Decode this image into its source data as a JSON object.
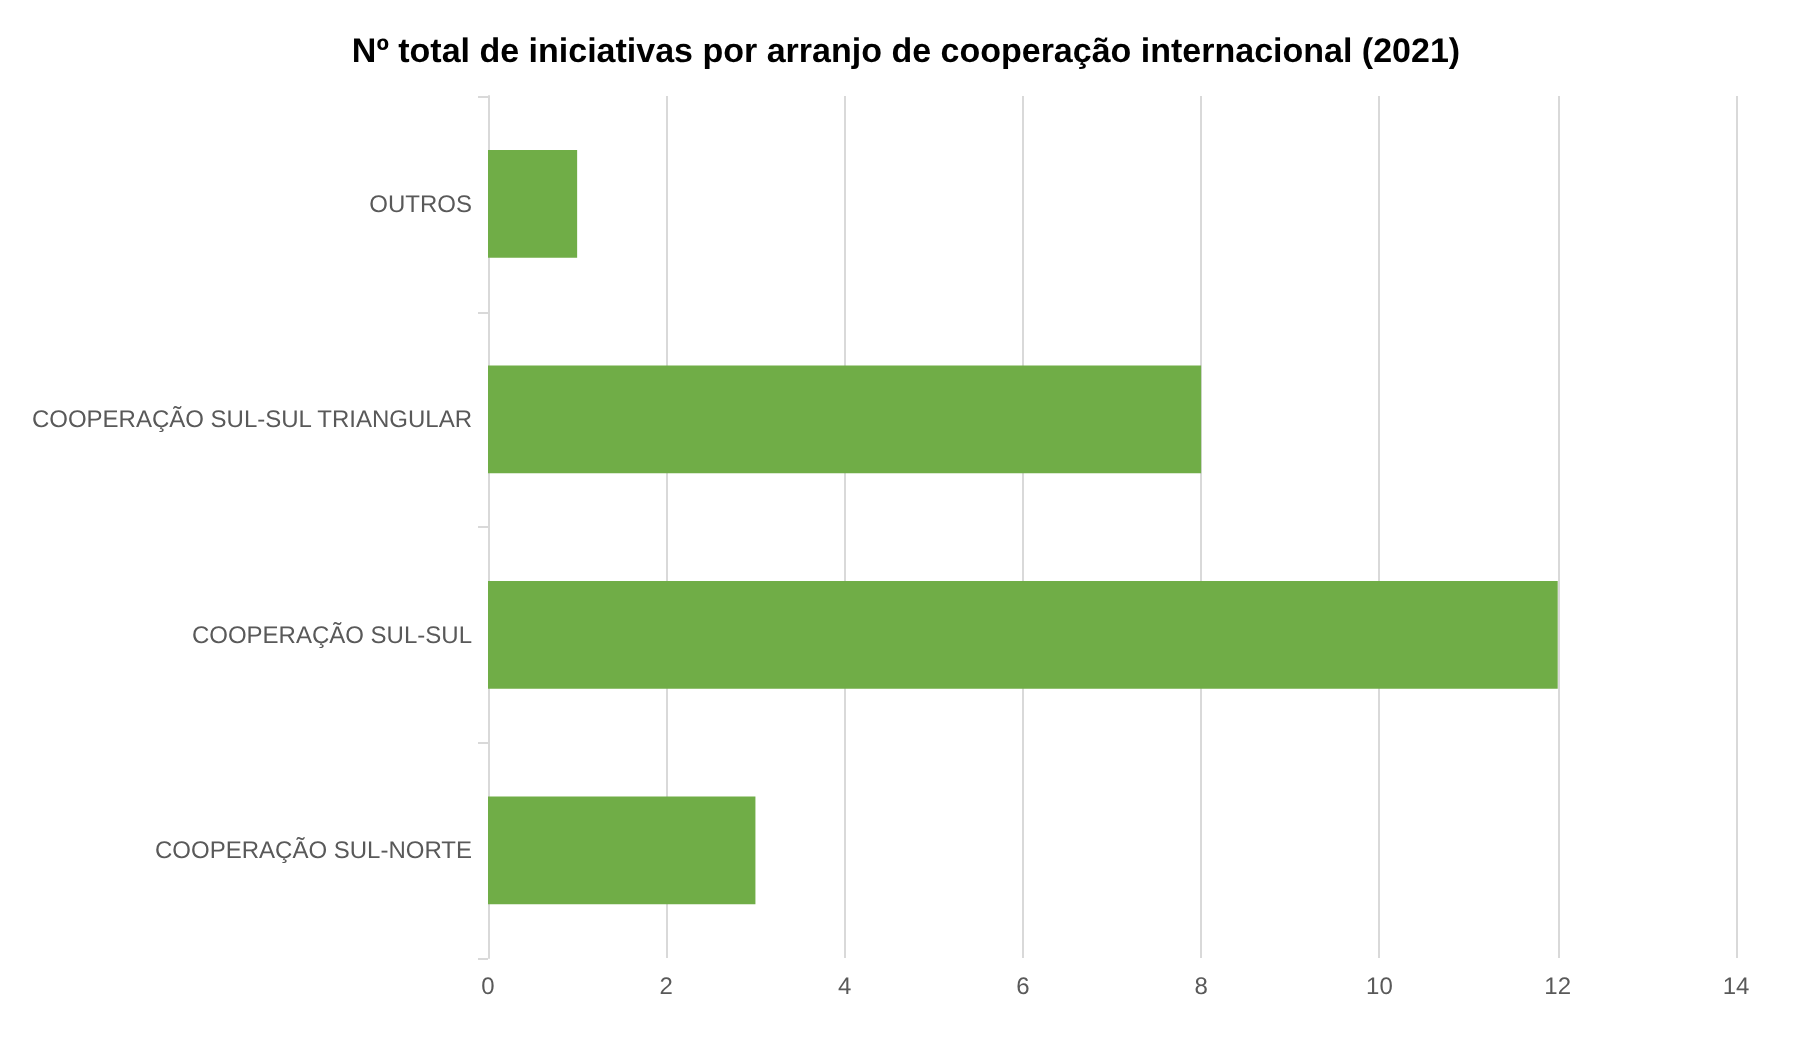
{
  "chart_data": {
    "type": "bar",
    "orientation": "horizontal",
    "title": "Nº total de iniciativas por arranjo de cooperação internacional (2021)",
    "categories": [
      "OUTROS",
      "COOPERAÇÃO SUL-SUL TRIANGULAR",
      "COOPERAÇÃO SUL-SUL",
      "COOPERAÇÃO SUL-NORTE"
    ],
    "values": [
      1,
      8,
      12,
      3
    ],
    "color": "#70ad47",
    "xlim": [
      0,
      14
    ],
    "xticks": [
      0,
      2,
      4,
      6,
      8,
      10,
      12,
      14
    ],
    "grid": "x"
  }
}
